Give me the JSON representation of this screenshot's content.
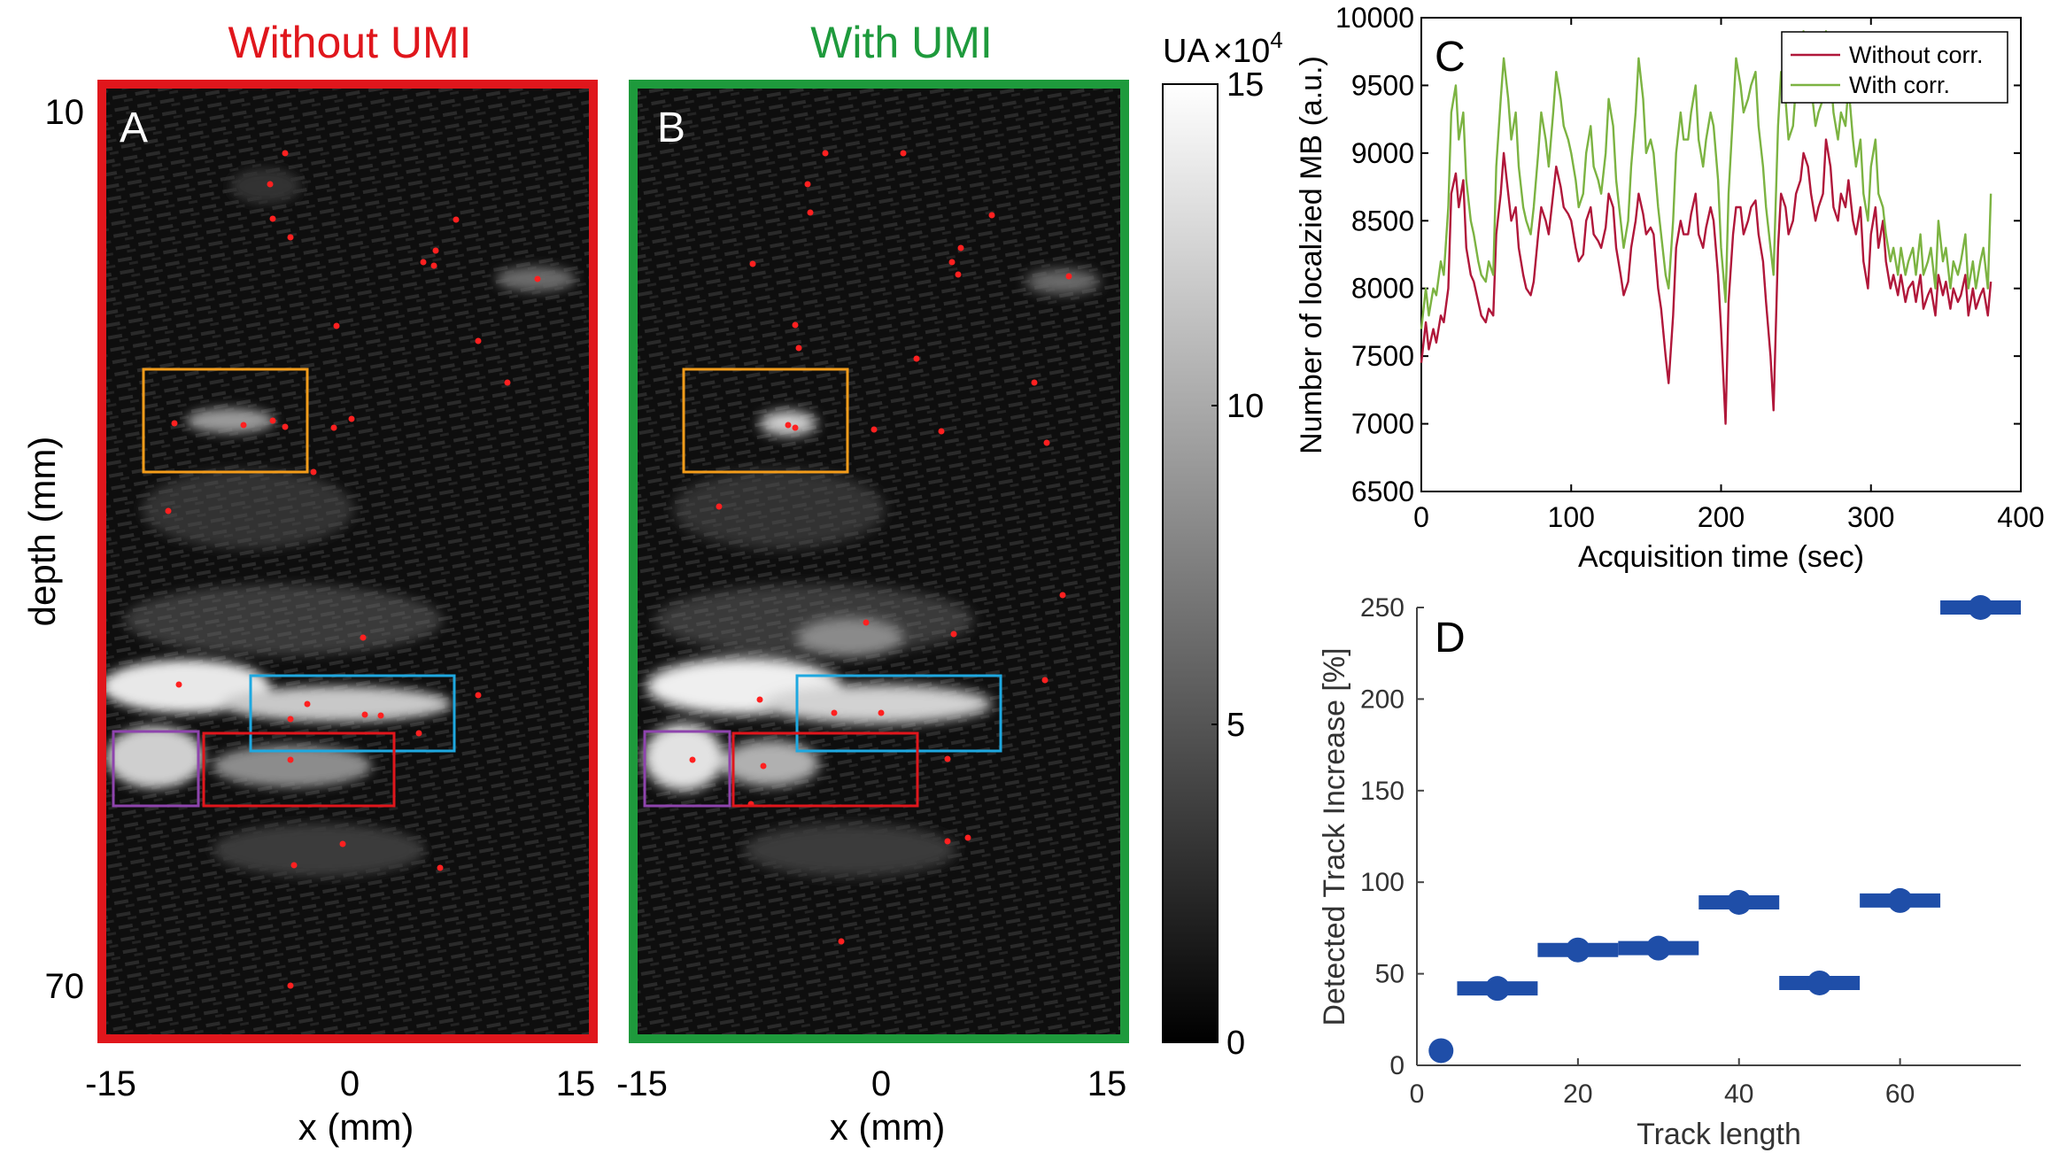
{
  "figure": {
    "panel_a": {
      "letter": "A",
      "title": "Without UMI",
      "title_color": "#e0161c",
      "frame_color": "#e0161c",
      "ylabel": "depth (mm)",
      "xlabel": "x (mm)",
      "xticks": [
        "-15",
        "0",
        "15"
      ],
      "yticks": [
        "10",
        "70"
      ]
    },
    "panel_b": {
      "letter": "B",
      "title": "With UMI",
      "title_color": "#1e9a3c",
      "frame_color": "#1e9a3c",
      "xlabel": "x (mm)",
      "xticks": [
        "-15",
        "0",
        "15"
      ]
    },
    "colorbar": {
      "label_prefix": "UA",
      "label_times": "×10",
      "label_exp": "4",
      "ticks": [
        "15",
        "10",
        "5",
        "0"
      ]
    },
    "roi_colors": [
      "#f39c1a",
      "#1ea8e0",
      "#e0161c",
      "#8e44ad"
    ],
    "dot_color": "#ff2020"
  },
  "chart_data": [
    {
      "id": "C",
      "letter": "C",
      "type": "line",
      "xlabel": "Acquisition time (sec)",
      "ylabel": "Number of localzied MB (a.u.)",
      "xlim": [
        0,
        400
      ],
      "ylim": [
        6500,
        10000
      ],
      "xticks": [
        "0",
        "100",
        "200",
        "300",
        "400"
      ],
      "yticks": [
        "6500",
        "7000",
        "7500",
        "8000",
        "8500",
        "9000",
        "9500",
        "10000"
      ],
      "legend_position": "top-right",
      "series": [
        {
          "name": "Without corr.",
          "color": "#b0173a",
          "x": [
            0,
            3,
            5,
            8,
            10,
            13,
            15,
            18,
            20,
            23,
            25,
            28,
            30,
            33,
            35,
            38,
            40,
            43,
            45,
            48,
            50,
            53,
            55,
            58,
            60,
            63,
            65,
            68,
            70,
            73,
            75,
            78,
            80,
            83,
            85,
            88,
            90,
            93,
            95,
            98,
            100,
            103,
            105,
            108,
            110,
            113,
            115,
            118,
            120,
            123,
            125,
            128,
            130,
            133,
            135,
            138,
            140,
            143,
            145,
            148,
            150,
            153,
            155,
            158,
            160,
            163,
            165,
            168,
            170,
            173,
            175,
            178,
            180,
            183,
            185,
            188,
            190,
            193,
            195,
            198,
            200,
            203,
            205,
            208,
            210,
            213,
            215,
            218,
            220,
            223,
            225,
            228,
            230,
            233,
            235,
            238,
            240,
            243,
            245,
            248,
            250,
            253,
            255,
            258,
            260,
            263,
            265,
            268,
            270,
            273,
            275,
            278,
            280,
            283,
            285,
            288,
            290,
            293,
            295,
            298,
            300,
            303,
            305,
            308,
            310,
            313,
            315,
            318,
            320,
            323,
            325,
            328,
            330,
            333,
            335,
            338,
            340,
            343,
            345,
            348,
            350,
            353,
            355,
            358,
            360,
            363,
            365,
            368,
            370,
            373,
            375,
            378,
            380
          ],
          "values": [
            7450,
            7750,
            7550,
            7700,
            7600,
            7800,
            7750,
            8000,
            8700,
            8850,
            8600,
            8800,
            8300,
            8100,
            8050,
            7900,
            7800,
            7750,
            7850,
            7800,
            8400,
            8700,
            9000,
            8700,
            8500,
            8600,
            8300,
            8100,
            8000,
            7950,
            8050,
            8400,
            8600,
            8500,
            8400,
            8700,
            8900,
            8750,
            8600,
            8550,
            8500,
            8300,
            8200,
            8250,
            8500,
            8600,
            8400,
            8350,
            8300,
            8450,
            8700,
            8600,
            8300,
            8100,
            7950,
            8050,
            8300,
            8500,
            8700,
            8550,
            8400,
            8450,
            8400,
            8000,
            7850,
            7500,
            7300,
            7800,
            8300,
            8500,
            8400,
            8400,
            8550,
            8700,
            8400,
            8300,
            8450,
            8600,
            8500,
            8100,
            7700,
            7000,
            7900,
            8400,
            8600,
            8600,
            8400,
            8500,
            8600,
            8650,
            8400,
            8200,
            7900,
            7500,
            7100,
            8300,
            8700,
            8600,
            8400,
            8500,
            8700,
            8800,
            9000,
            8900,
            8700,
            8500,
            8600,
            8700,
            9100,
            8900,
            8600,
            8500,
            8700,
            8600,
            8800,
            8500,
            8400,
            8600,
            8200,
            8000,
            8400,
            8600,
            8300,
            8500,
            8200,
            8000,
            8100,
            7950,
            8100,
            7900,
            8000,
            8050,
            7900,
            8100,
            7850,
            7950,
            8000,
            7800,
            8100,
            7950,
            8050,
            7850,
            8000,
            7900,
            7950,
            8100,
            7800,
            8000,
            7850,
            7950,
            8000,
            7800,
            8050
          ]
        },
        {
          "name": "With corr.",
          "color": "#7cb342",
          "x": [
            0,
            3,
            5,
            8,
            10,
            13,
            15,
            18,
            20,
            23,
            25,
            28,
            30,
            33,
            35,
            38,
            40,
            43,
            45,
            48,
            50,
            53,
            55,
            58,
            60,
            63,
            65,
            68,
            70,
            73,
            75,
            78,
            80,
            83,
            85,
            88,
            90,
            93,
            95,
            98,
            100,
            103,
            105,
            108,
            110,
            113,
            115,
            118,
            120,
            123,
            125,
            128,
            130,
            133,
            135,
            138,
            140,
            143,
            145,
            148,
            150,
            153,
            155,
            158,
            160,
            163,
            165,
            168,
            170,
            173,
            175,
            178,
            180,
            183,
            185,
            188,
            190,
            193,
            195,
            198,
            200,
            203,
            205,
            208,
            210,
            213,
            215,
            218,
            220,
            223,
            225,
            228,
            230,
            233,
            235,
            238,
            240,
            243,
            245,
            248,
            250,
            253,
            255,
            258,
            260,
            263,
            265,
            268,
            270,
            273,
            275,
            278,
            280,
            283,
            285,
            288,
            290,
            293,
            295,
            298,
            300,
            303,
            305,
            308,
            310,
            313,
            315,
            318,
            320,
            323,
            325,
            328,
            330,
            333,
            335,
            338,
            340,
            343,
            345,
            348,
            350,
            353,
            355,
            358,
            360,
            363,
            365,
            368,
            370,
            373,
            375,
            378,
            380
          ],
          "values": [
            7700,
            8000,
            7800,
            8000,
            7950,
            8200,
            8100,
            8600,
            9300,
            9500,
            9100,
            9300,
            8800,
            8500,
            8400,
            8200,
            8100,
            8050,
            8200,
            8100,
            8900,
            9400,
            9700,
            9400,
            9100,
            9300,
            8900,
            8600,
            8500,
            8400,
            8600,
            9000,
            9300,
            9100,
            8900,
            9300,
            9600,
            9400,
            9200,
            9100,
            9000,
            8800,
            8600,
            8700,
            9000,
            9200,
            8900,
            8800,
            8700,
            9000,
            9400,
            9200,
            8800,
            8500,
            8300,
            8500,
            8900,
            9300,
            9700,
            9400,
            9000,
            9100,
            9000,
            8600,
            8400,
            8100,
            8000,
            8500,
            9000,
            9300,
            9100,
            9100,
            9300,
            9500,
            9100,
            8900,
            9100,
            9300,
            9200,
            8800,
            8300,
            7900,
            8700,
            9300,
            9700,
            9500,
            9300,
            9400,
            9500,
            9600,
            9200,
            8900,
            8600,
            8300,
            8100,
            9200,
            9600,
            9400,
            9100,
            9200,
            9500,
            9600,
            9900,
            9700,
            9500,
            9200,
            9300,
            9400,
            9900,
            9600,
            9300,
            9100,
            9300,
            9200,
            9500,
            9100,
            8900,
            9100,
            8700,
            8500,
            8900,
            9100,
            8700,
            8600,
            8400,
            8200,
            8300,
            8100,
            8300,
            8100,
            8200,
            8300,
            8100,
            8400,
            8100,
            8200,
            8300,
            8000,
            8500,
            8200,
            8300,
            8000,
            8200,
            8100,
            8200,
            8400,
            8000,
            8200,
            8000,
            8200,
            8300,
            8000,
            8700
          ]
        }
      ]
    },
    {
      "id": "D",
      "letter": "D",
      "type": "scatter",
      "xlabel": "Track length",
      "ylabel": "Detected Track Increase [%]",
      "xlim": [
        0,
        75
      ],
      "ylim": [
        0,
        250
      ],
      "xticks": [
        "0",
        "20",
        "40",
        "60"
      ],
      "yticks": [
        "0",
        "50",
        "100",
        "150",
        "200",
        "250"
      ],
      "color": "#1f4ea8",
      "points": [
        {
          "x": 3,
          "y": 8,
          "bar": [
            3,
            3
          ]
        },
        {
          "x": 10,
          "y": 42,
          "bar": [
            5,
            15
          ]
        },
        {
          "x": 20,
          "y": 63,
          "bar": [
            15,
            25
          ]
        },
        {
          "x": 30,
          "y": 64,
          "bar": [
            25,
            35
          ]
        },
        {
          "x": 40,
          "y": 89,
          "bar": [
            35,
            45
          ]
        },
        {
          "x": 50,
          "y": 45,
          "bar": [
            45,
            55
          ]
        },
        {
          "x": 60,
          "y": 90,
          "bar": [
            55,
            65
          ]
        },
        {
          "x": 70,
          "y": 250,
          "bar": [
            65,
            75
          ]
        }
      ]
    }
  ]
}
